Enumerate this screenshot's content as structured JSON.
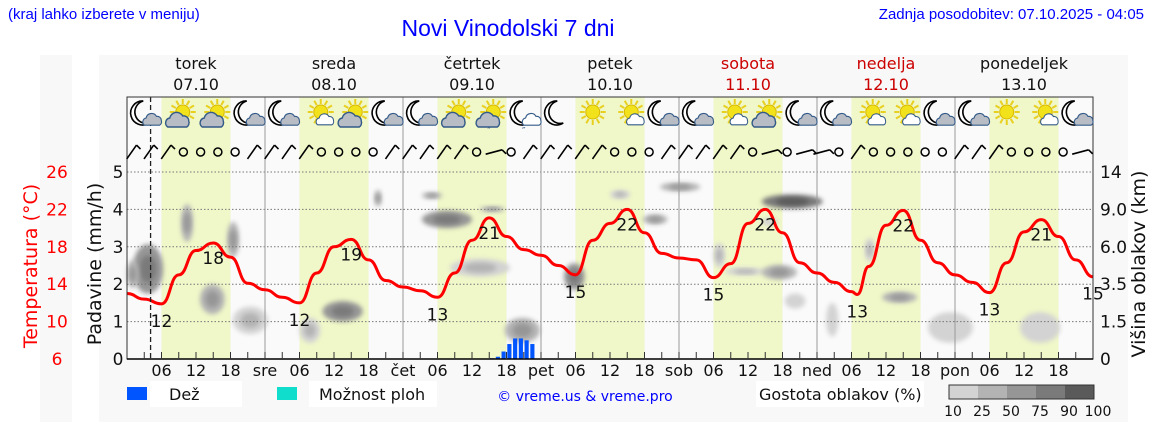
{
  "header": {
    "note": "(kraj lahko izberete v meniju)",
    "title": "Novi Vinodolski 7 dni",
    "updated": "Zadnja posodobitev: 07.10.2025 - 04:05"
  },
  "days": [
    {
      "name": "torek",
      "date": "07.10",
      "weekend": false,
      "abbr": ""
    },
    {
      "name": "sreda",
      "date": "08.10",
      "weekend": false,
      "abbr": "sre"
    },
    {
      "name": "četrtek",
      "date": "09.10",
      "weekend": false,
      "abbr": "čet"
    },
    {
      "name": "petek",
      "date": "10.10",
      "weekend": false,
      "abbr": "pet"
    },
    {
      "name": "sobota",
      "date": "11.10",
      "weekend": true,
      "abbr": "sob"
    },
    {
      "name": "nedelja",
      "date": "12.10",
      "weekend": true,
      "abbr": "ned"
    },
    {
      "name": "ponedeljek",
      "date": "13.10",
      "weekend": false,
      "abbr": "pon"
    }
  ],
  "hour_labels": [
    "06",
    "12",
    "18"
  ],
  "legend": {
    "rain": "Dež",
    "showers": "Možnost ploh",
    "copyright": "© vreme.us & vreme.pro",
    "cloud_density": "Gostota oblakov (%)",
    "density_levels": [
      "10",
      "25",
      "50",
      "75",
      "90",
      "100"
    ]
  },
  "colors": {
    "temperature": "#ff0000",
    "rain": "#0055ff",
    "showers": "#11ddcc",
    "daylight": "#f0f7c8",
    "weekend": "#cc0000",
    "link": "#0000ff",
    "density": [
      "#d3d3d3",
      "#b3b3b3",
      "#969696",
      "#7a7a7a",
      "#5a5a5a"
    ]
  },
  "chart_data": {
    "type": "line",
    "x_unit": "hours since 07.10 00:00",
    "xlim": [
      0,
      168
    ],
    "now_hour": 4.1,
    "temperature": {
      "label": "Temperatura (°C)",
      "ticks": [
        "6",
        "10",
        "14",
        "18",
        "22",
        "26"
      ],
      "ylim": [
        6,
        26
      ],
      "hours": [
        0,
        3,
        6,
        9,
        12,
        15,
        18,
        21,
        24,
        27,
        30,
        33,
        36,
        39,
        42,
        45,
        48,
        51,
        54,
        57,
        60,
        63,
        66,
        69,
        72,
        75,
        78,
        81,
        84,
        87,
        90,
        93,
        96,
        99,
        102,
        105,
        108,
        111,
        114,
        117,
        120,
        123,
        126,
        127,
        129,
        132,
        135,
        138,
        141,
        144,
        147,
        150,
        153,
        156,
        159,
        162,
        165,
        168
      ],
      "values": [
        13.0,
        12.4,
        11.9,
        15.0,
        17.6,
        18.4,
        16.9,
        14.1,
        13.4,
        12.6,
        12.0,
        15.2,
        18.0,
        18.8,
        16.6,
        14.4,
        13.7,
        13.3,
        12.6,
        15.2,
        18.7,
        21.1,
        19.1,
        17.7,
        17.1,
        16.0,
        15.0,
        18.7,
        20.5,
        22.0,
        19.5,
        17.3,
        16.8,
        16.6,
        14.7,
        16.2,
        20.5,
        22.0,
        19.5,
        16.3,
        15.2,
        14.2,
        13.2,
        12.9,
        15.9,
        20.3,
        21.9,
        18.7,
        16.3,
        15.0,
        14.2,
        13.1,
        16.3,
        19.6,
        20.9,
        19.1,
        16.6,
        14.8
      ],
      "labels": [
        {
          "hour": 6,
          "value": "12"
        },
        {
          "hour": 15,
          "value": "18"
        },
        {
          "hour": 30,
          "value": "12"
        },
        {
          "hour": 39,
          "value": "19"
        },
        {
          "hour": 54,
          "value": "13"
        },
        {
          "hour": 63,
          "value": "21"
        },
        {
          "hour": 78,
          "value": "15"
        },
        {
          "hour": 87,
          "value": "22"
        },
        {
          "hour": 102,
          "value": "15"
        },
        {
          "hour": 111,
          "value": "22"
        },
        {
          "hour": 127,
          "value": "13"
        },
        {
          "hour": 135,
          "value": "22"
        },
        {
          "hour": 150,
          "value": "13"
        },
        {
          "hour": 159,
          "value": "21"
        },
        {
          "hour": 168,
          "value": "15"
        }
      ]
    },
    "precipitation": {
      "label": "Padavine (mm/h)",
      "ticks": [
        "0",
        "1",
        "2",
        "3",
        "4",
        "5"
      ],
      "ylim": [
        0,
        5
      ],
      "hours": [
        63,
        64,
        65,
        66,
        67,
        68,
        69,
        70
      ],
      "values": [
        0.02,
        0.06,
        0.2,
        0.4,
        0.55,
        0.55,
        0.5,
        0.4
      ]
    },
    "cloud_height": {
      "label": "Višina oblakov (km)",
      "ticks": [
        "0",
        "1.5",
        "3.5",
        "6.0",
        "9.0",
        "14"
      ],
      "tick_values": [
        0,
        1.5,
        3.5,
        6,
        9,
        14
      ]
    },
    "clouds": [
      [
        1,
        6.3,
        3.0,
        6.2,
        75
      ],
      [
        0,
        2,
        3.3,
        5.1,
        50
      ],
      [
        9.4,
        11.5,
        6.4,
        9.7,
        50
      ],
      [
        17.4,
        19.5,
        5.3,
        8.0,
        50
      ],
      [
        12.7,
        17,
        1.9,
        3.5,
        50
      ],
      [
        18.4,
        24.5,
        1.0,
        2.3,
        25
      ],
      [
        34,
        41,
        1.5,
        2.6,
        75
      ],
      [
        30,
        33.6,
        0.65,
        1.7,
        25
      ],
      [
        43,
        44.3,
        9.4,
        11.6,
        50
      ],
      [
        51.3,
        60,
        7.5,
        8.9,
        75
      ],
      [
        51.3,
        54.8,
        10.4,
        11.3,
        50
      ],
      [
        61.4,
        65.7,
        8.8,
        9.4,
        50
      ],
      [
        56.2,
        66.6,
        4.0,
        5.2,
        25
      ],
      [
        65.7,
        71.8,
        0.65,
        1.7,
        50
      ],
      [
        76,
        79.6,
        3.2,
        4.9,
        75
      ],
      [
        84,
        87.5,
        10.4,
        11.6,
        25
      ],
      [
        92.7,
        99.7,
        11.4,
        12.6,
        50
      ],
      [
        89.7,
        94,
        7.8,
        8.6,
        50
      ],
      [
        102,
        104,
        4.6,
        6.3,
        25
      ],
      [
        104,
        111,
        4.1,
        4.6,
        25
      ],
      [
        110.4,
        116.5,
        3.8,
        4.8,
        50
      ],
      [
        110.4,
        121,
        9.1,
        11,
        90
      ],
      [
        114.4,
        118,
        2.2,
        3.0,
        10
      ],
      [
        110.4,
        113.2,
        7.7,
        8.3,
        10
      ],
      [
        121.6,
        123.7,
        0.9,
        2.5,
        10
      ],
      [
        128.3,
        130,
        5.0,
        6.7,
        25
      ],
      [
        131.3,
        137.4,
        2.5,
        3.1,
        50
      ],
      [
        139.3,
        147.1,
        0.65,
        2.0,
        10
      ],
      [
        155.3,
        162.3,
        0.65,
        2.0,
        10
      ]
    ],
    "wind": [
      "ne",
      "ne",
      "ne",
      "calm",
      "calm",
      "calm",
      "calm",
      "ne",
      "ne",
      "ne",
      "ne",
      "calm",
      "calm",
      "calm",
      "calm",
      "ne",
      "ne",
      "ne",
      "ne",
      "ne",
      "calm",
      "e",
      "calm",
      "ne",
      "ne",
      "ne",
      "ne",
      "ne",
      "calm",
      "calm",
      "calm",
      "ne",
      "ne",
      "ne",
      "ne",
      "ne",
      "calm",
      "e",
      "calm",
      "e",
      "e",
      "calm",
      "ne",
      "calm",
      "calm",
      "calm",
      "calm",
      "calm",
      "ne",
      "ne",
      "ne",
      "calm",
      "calm",
      "calm",
      "calm",
      "e"
    ],
    "icons": [
      "moon-cloud",
      "sun-cloud",
      "sun-cloud",
      "moon-cloud",
      "moon-cloud",
      "sun-small-cloud",
      "sun-cloud",
      "moon-cloud",
      "moon-cloud",
      "sun-cloud",
      "sun-cloud-drizzle",
      "moon-cloud-drizzle",
      "moon",
      "sun",
      "sun-small-cloud",
      "moon-cloud",
      "moon-cloud",
      "sun-small-cloud",
      "sun-cloud",
      "moon-cloud",
      "moon-cloud",
      "sun-small-cloud",
      "sun-small-cloud",
      "moon-cloud",
      "moon-cloud",
      "sun",
      "sun-small-cloud",
      "moon-cloud"
    ]
  }
}
